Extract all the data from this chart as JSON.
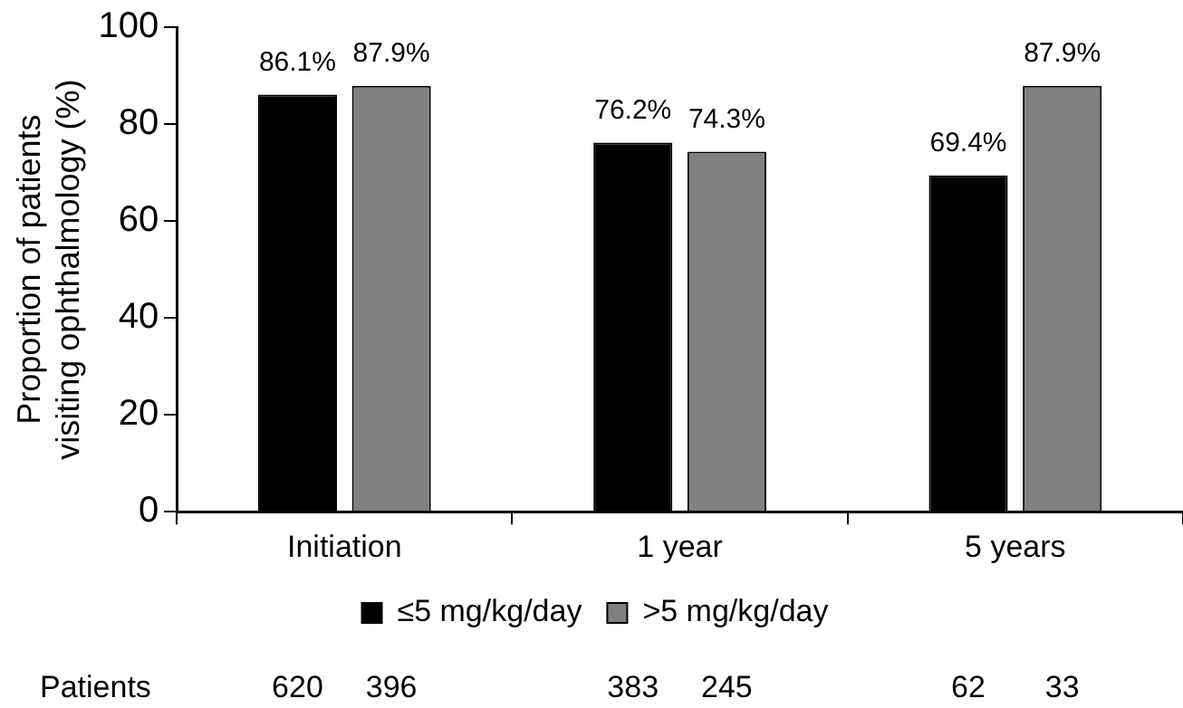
{
  "chart_data": {
    "type": "bar",
    "ylabel": "Proportion of patients\nvisiting ophthalmology (%)",
    "categories": [
      "Initiation",
      "1 year",
      "5 years"
    ],
    "series": [
      {
        "name": "≤5 mg/kg/day",
        "color": "#000000",
        "values": [
          86.1,
          76.2,
          69.4
        ],
        "value_labels": [
          "86.1%",
          "76.2%",
          "69.4%"
        ]
      },
      {
        "name": ">5 mg/kg/day",
        "color": "#808080",
        "values": [
          87.9,
          74.3,
          87.9
        ],
        "value_labels": [
          "87.9%",
          "74.3%",
          "87.9%"
        ]
      }
    ],
    "ylim": [
      0,
      100
    ],
    "yticks": [
      0,
      20,
      40,
      60,
      80,
      100
    ],
    "grid": false,
    "legend": "bottom",
    "annotations": [
      "Patients",
      "620",
      "396",
      "383",
      "245",
      "62",
      "33"
    ]
  }
}
